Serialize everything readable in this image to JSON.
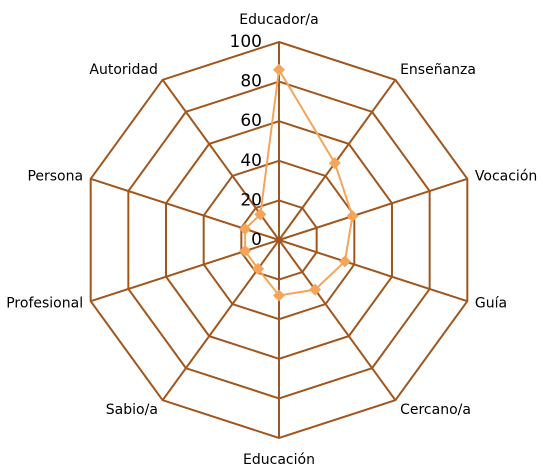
{
  "chart_data": {
    "type": "radar",
    "categories": [
      "Educador/a",
      "Enseñanza",
      "Vocación",
      "Guía",
      "Cercano/a",
      "Educación",
      "Sabio/a",
      "Profesional",
      "Persona",
      "Autoridad"
    ],
    "series": [
      {
        "color": "#f5a55a",
        "values": [
          86,
          48,
          39,
          35,
          31,
          28,
          18,
          18,
          18,
          16
        ]
      }
    ],
    "ylim": [
      0,
      100
    ],
    "yticks": [
      0,
      20,
      40,
      60,
      80,
      100
    ],
    "grid_color": "#a0561c"
  }
}
